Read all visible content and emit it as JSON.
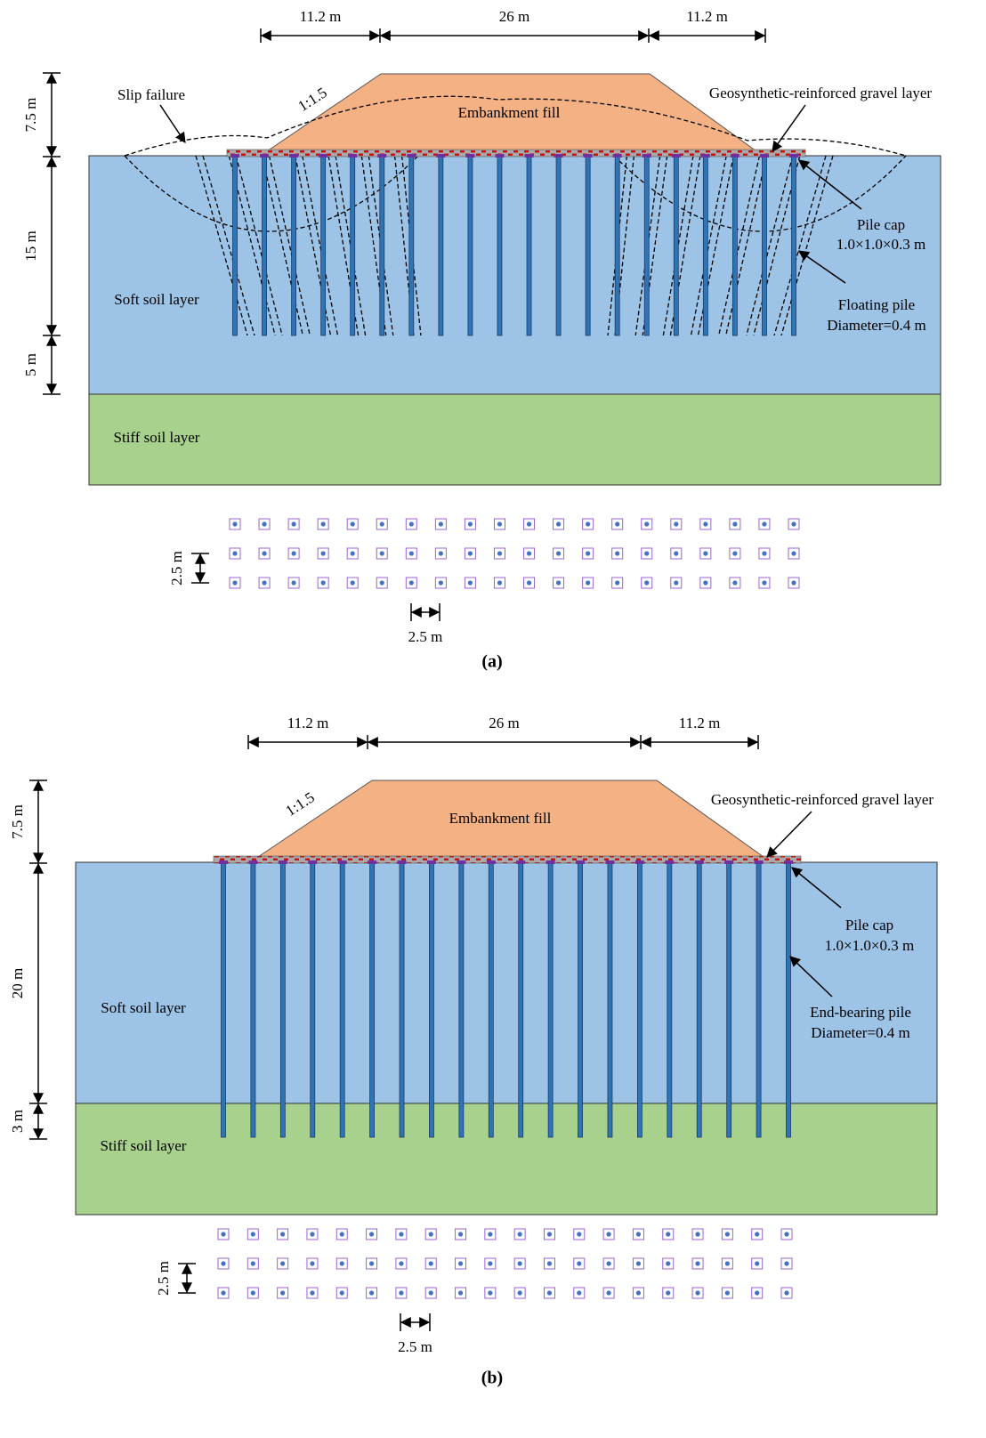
{
  "panels": [
    {
      "caption": "(a)",
      "top_dimensions": [
        "11.2 m",
        "26 m",
        "11.2 m"
      ],
      "depth_dimensions": [
        "7.5 m",
        "15 m",
        "5 m"
      ],
      "slip_label": "Slip failure",
      "slope": "1:1.5",
      "embankment": "Embankment fill",
      "gravel_layer": "Geosynthetic-reinforced gravel layer",
      "pile_cap": [
        "Pile cap",
        "1.0×1.0×0.3 m"
      ],
      "pile": [
        "Floating pile",
        "Diameter=0.4 m"
      ],
      "soft_soil": "Soft soil layer",
      "stiff_soil": "Stiff soil layer",
      "plan_spacing": [
        "2.5 m",
        "2.5 m"
      ]
    },
    {
      "caption": "(b)",
      "top_dimensions": [
        "11.2 m",
        "26 m",
        "11.2 m"
      ],
      "depth_dimensions": [
        "7.5 m",
        "20 m",
        "3 m"
      ],
      "slope": "1:1.5",
      "embankment": "Embankment fill",
      "gravel_layer": "Geosynthetic-reinforced gravel layer",
      "pile_cap": [
        "Pile cap",
        "1.0×1.0×0.3 m"
      ],
      "pile": [
        "End-bearing pile",
        "Diameter=0.4 m"
      ],
      "soft_soil": "Soft soil layer",
      "stiff_soil": "Stiff soil layer",
      "plan_spacing": [
        "2.5 m",
        "2.5 m"
      ]
    }
  ]
}
